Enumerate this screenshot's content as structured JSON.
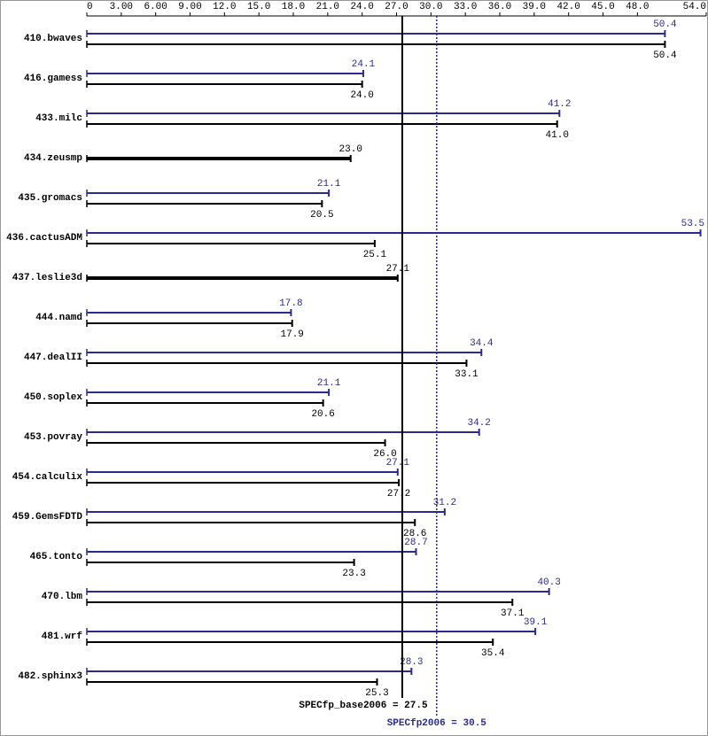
{
  "chart_data": {
    "type": "spec-bars",
    "categories": [
      "410.bwaves",
      "416.gamess",
      "433.milc",
      "434.zeusmp",
      "435.gromacs",
      "436.cactusADM",
      "437.leslie3d",
      "444.namd",
      "447.dealII",
      "450.soplex",
      "453.povray",
      "454.calculix",
      "459.GemsFDTD",
      "465.tonto",
      "470.lbm",
      "481.wrf",
      "482.sphinx3"
    ],
    "series": [
      {
        "color": "#2b2b8f",
        "values": [
          50.4,
          24.1,
          41.2,
          null,
          21.1,
          53.5,
          null,
          17.8,
          34.4,
          21.1,
          34.2,
          27.1,
          31.2,
          28.7,
          40.3,
          39.1,
          28.3
        ],
        "value_labels": [
          "50.4",
          "24.1",
          "41.2",
          null,
          "21.1",
          "53.5",
          null,
          "17.8",
          "34.4",
          "21.1",
          "34.2",
          "27.1",
          "31.2",
          "28.7",
          "40.3",
          "39.1",
          "28.3"
        ]
      },
      {
        "color": "#000000",
        "values": [
          50.4,
          24.0,
          41.0,
          23.0,
          20.5,
          25.1,
          27.1,
          17.9,
          33.1,
          20.6,
          26.0,
          27.2,
          28.6,
          23.3,
          37.1,
          35.4,
          25.3
        ],
        "value_labels": [
          "50.4",
          "24.0",
          "41.0",
          "23.0",
          "20.5",
          "25.1",
          "27.1",
          "17.9",
          "33.1",
          "20.6",
          "26.0",
          "27.2",
          "28.6",
          "23.3",
          "37.1",
          "35.4",
          "25.3"
        ]
      }
    ],
    "xlim": [
      0,
      54
    ],
    "xticks": [
      0,
      {
        "value": 3,
        "label": "3.00"
      },
      {
        "value": 6,
        "label": "6.00"
      },
      {
        "value": 9,
        "label": "9.00"
      },
      {
        "value": 12,
        "label": "12.0"
      },
      {
        "value": 15,
        "label": "15.0"
      },
      {
        "value": 18,
        "label": "18.0"
      },
      {
        "value": 21,
        "label": "21.0"
      },
      {
        "value": 24,
        "label": "24.0"
      },
      {
        "value": 27,
        "label": "27.0"
      },
      {
        "value": 30,
        "label": "30.0"
      },
      {
        "value": 33,
        "label": "33.0"
      },
      {
        "value": 36,
        "label": "36.0"
      },
      {
        "value": 39,
        "label": "39.0"
      },
      {
        "value": 42,
        "label": "42.0"
      },
      {
        "value": 45,
        "label": "45.0"
      },
      {
        "value": 48,
        "label": "48.0"
      },
      {
        "value": 54,
        "label": "54.0"
      }
    ],
    "reference_lines": [
      {
        "text": "SPECfp_base2006 = 27.5",
        "value": 27.5,
        "color": "#000000",
        "style": "solid"
      },
      {
        "text": "SPECfp2006 = 30.5",
        "value": 30.5,
        "color": "#2b2b8f",
        "style": "dotted"
      }
    ]
  }
}
